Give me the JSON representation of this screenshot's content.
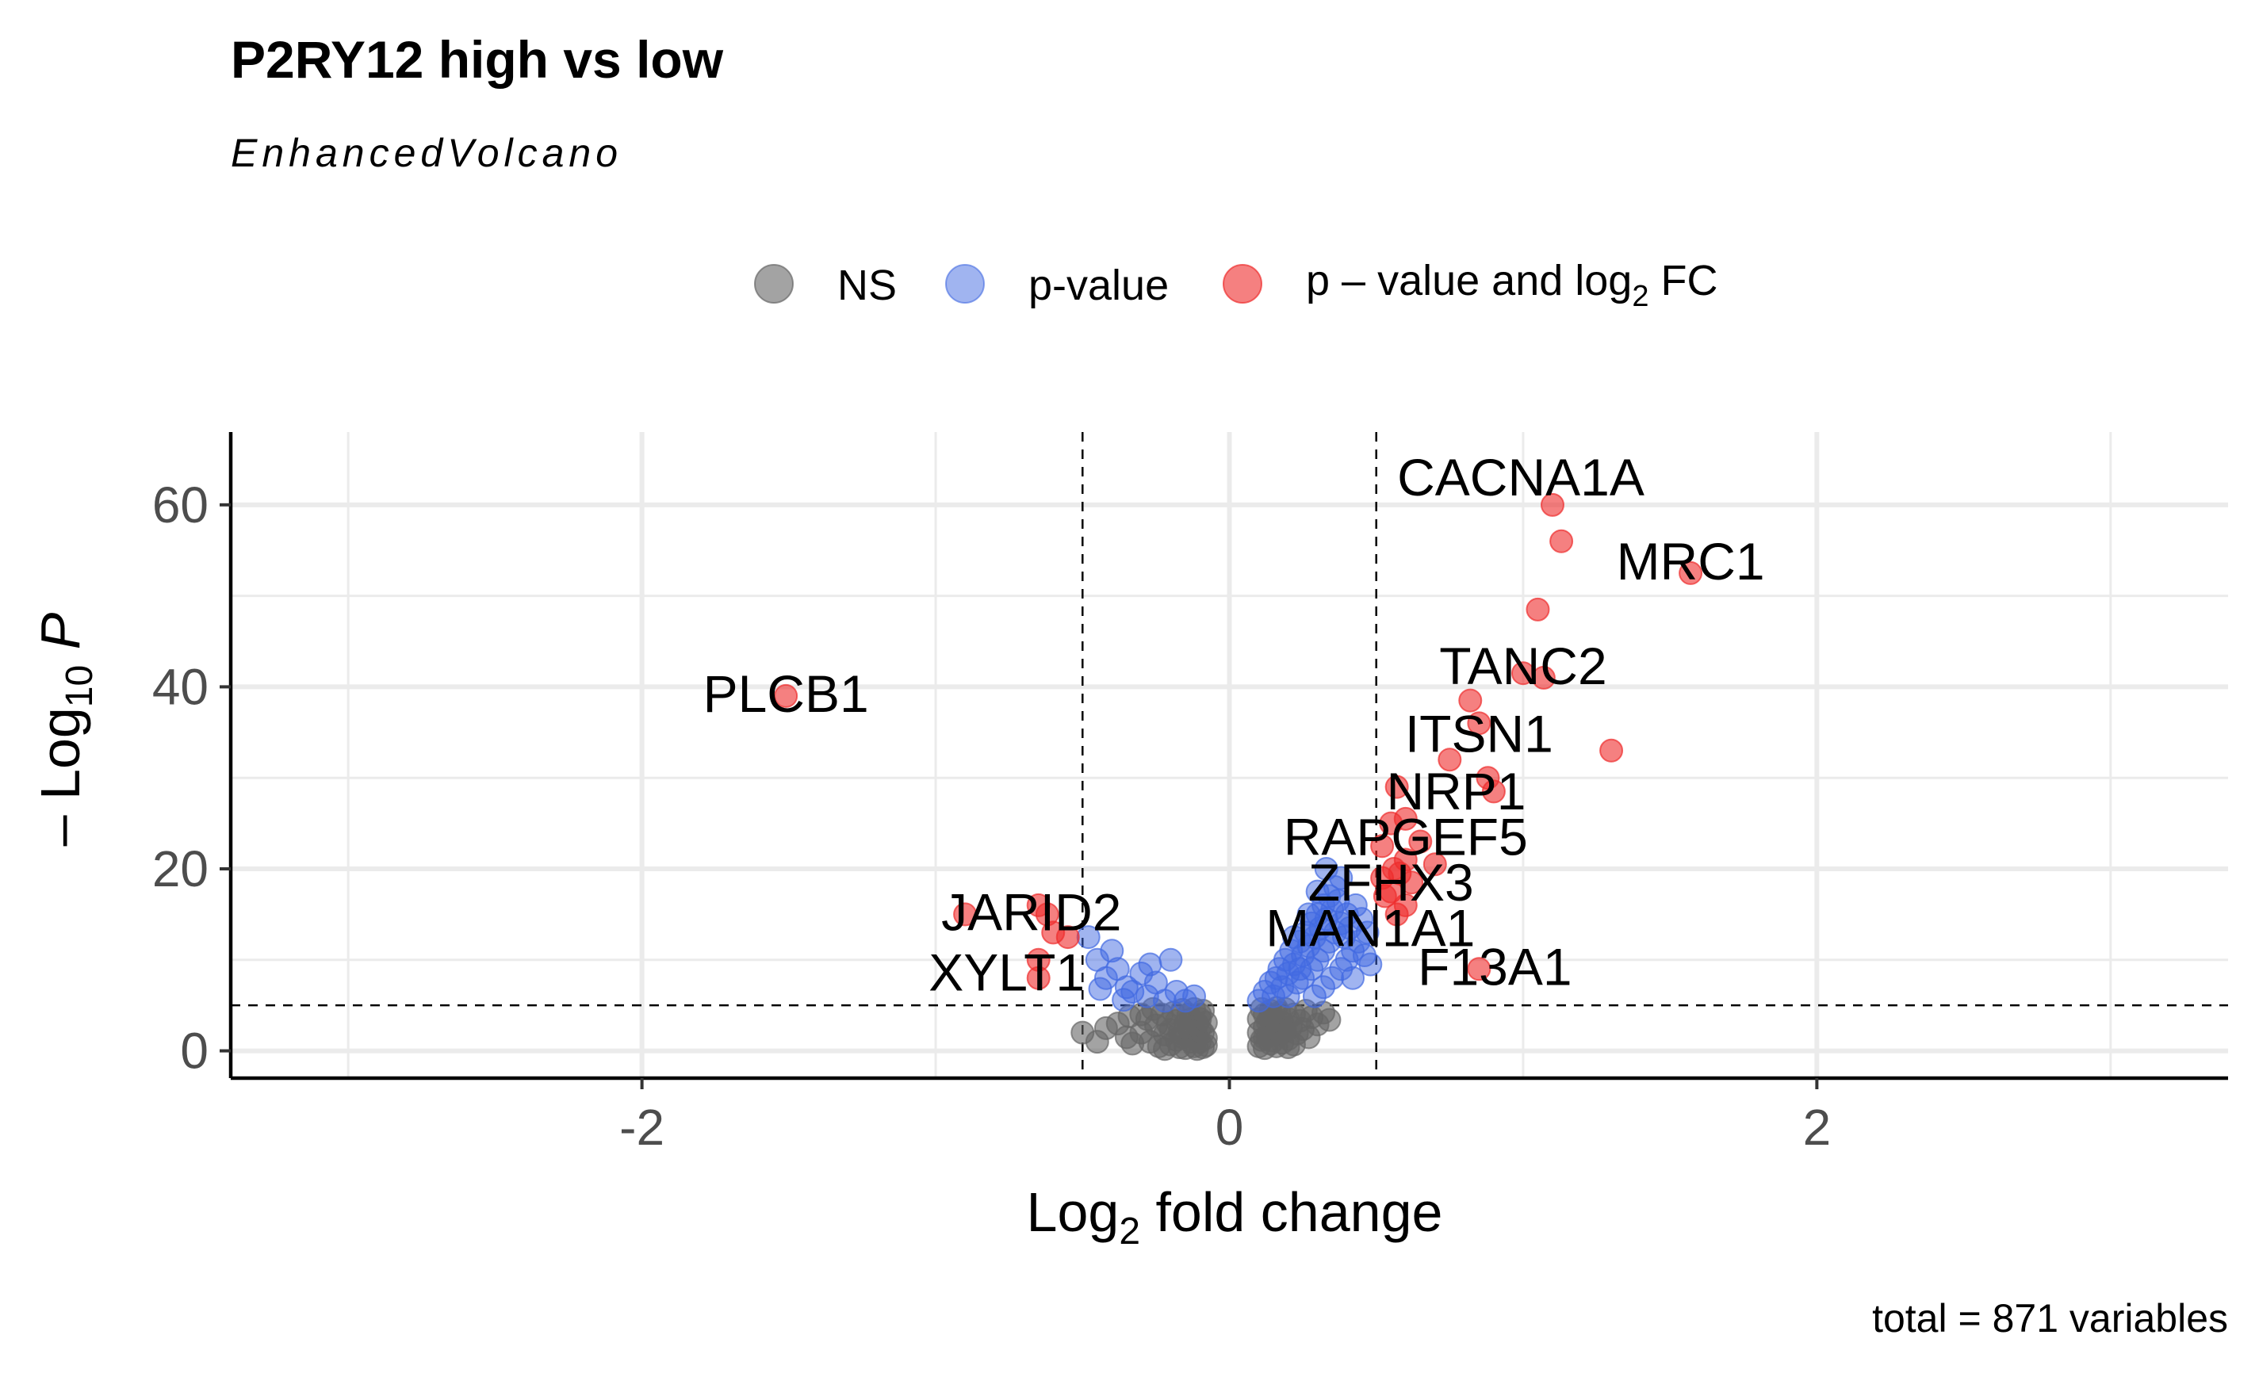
{
  "title": "P2RY12 high vs low",
  "subtitle": "EnhancedVolcano",
  "caption": "total = 871 variables",
  "legend": {
    "items": [
      {
        "label": "NS",
        "color": "#666666"
      },
      {
        "label": "p-value",
        "color": "#4169e1"
      },
      {
        "label": "p – value and log",
        "sub": "2",
        "suffix": " FC",
        "color": "#ee2c2c"
      }
    ]
  },
  "colors": {
    "ns": "#666666",
    "p": "#4169e1",
    "both": "#ee2c2c",
    "grid": "#ebebeb"
  },
  "chart_data": {
    "type": "scatter",
    "title": "P2RY12 high vs low",
    "subtitle": "EnhancedVolcano",
    "xlabel": {
      "main": "Log",
      "sub": "2",
      "rest": " fold change"
    },
    "ylabel": {
      "prefix": "– Log",
      "sub": "10",
      "italic": " P"
    },
    "xlim": [
      -3.4,
      3.4
    ],
    "ylim": [
      -3,
      68
    ],
    "xticks": [
      -2,
      0,
      2
    ],
    "xtick_labels": [
      "-2",
      "0",
      "2"
    ],
    "yticks": [
      0,
      20,
      40,
      60
    ],
    "ytick_labels": [
      "0",
      "20",
      "40",
      "60"
    ],
    "grid": true,
    "legend_position": "top",
    "thresholds": {
      "fc_cutoff": 0.5,
      "p_cutoff_log10": 5
    },
    "labelled_points": [
      {
        "gene": "CACNA1A",
        "x": 1.1,
        "y": 60
      },
      {
        "gene": "MRC1",
        "x": 1.57,
        "y": 52.5
      },
      {
        "gene": "TANC2",
        "x": 1.0,
        "y": 41
      },
      {
        "gene": "PLCB1",
        "x": -1.51,
        "y": 39
      },
      {
        "gene": "ITSN1",
        "x": 0.85,
        "y": 36
      },
      {
        "gene": "NRP1",
        "x": 0.88,
        "y": 30
      },
      {
        "gene": "RAPGEF5",
        "x": 0.6,
        "y": 25
      },
      {
        "gene": "ZFHX3",
        "x": 0.55,
        "y": 20
      },
      {
        "gene": "MAN1A1",
        "x": 0.48,
        "y": 15
      },
      {
        "gene": "JARID2",
        "x": -0.62,
        "y": 15
      },
      {
        "gene": "XYLT1",
        "x": -0.65,
        "y": 8
      },
      {
        "gene": "F13A1",
        "x": 0.85,
        "y": 9
      }
    ],
    "series": [
      {
        "name": "NS",
        "color": "#666666",
        "points": [
          [
            -0.5,
            2
          ],
          [
            -0.45,
            1
          ],
          [
            -0.42,
            2.5
          ],
          [
            -0.38,
            3
          ],
          [
            -0.35,
            1.5
          ],
          [
            -0.33,
            0.8
          ],
          [
            -0.3,
            2
          ],
          [
            -0.28,
            3.5
          ],
          [
            -0.27,
            1
          ],
          [
            -0.25,
            2.8
          ],
          [
            -0.24,
            0.5
          ],
          [
            -0.23,
            4
          ],
          [
            -0.22,
            1.8
          ],
          [
            -0.21,
            3
          ],
          [
            -0.2,
            0.7
          ],
          [
            -0.2,
            2.3
          ],
          [
            -0.19,
            4.2
          ],
          [
            -0.18,
            1.2
          ],
          [
            -0.18,
            3.3
          ],
          [
            -0.17,
            0.4
          ],
          [
            -0.17,
            2
          ],
          [
            -0.16,
            4.5
          ],
          [
            -0.16,
            1.5
          ],
          [
            -0.15,
            3
          ],
          [
            -0.15,
            0.3
          ],
          [
            -0.14,
            2.5
          ],
          [
            -0.14,
            4
          ],
          [
            -0.13,
            1
          ],
          [
            -0.13,
            3.5
          ],
          [
            -0.12,
            0.5
          ],
          [
            -0.12,
            2
          ],
          [
            -0.12,
            4.6
          ],
          [
            -0.11,
            1.5
          ],
          [
            -0.11,
            3
          ],
          [
            -0.11,
            0.2
          ],
          [
            -0.1,
            2.5
          ],
          [
            -0.1,
            4
          ],
          [
            -0.1,
            1
          ],
          [
            -0.1,
            3.5
          ],
          [
            -0.09,
            0.4
          ],
          [
            -0.09,
            2
          ],
          [
            -0.09,
            4.4
          ],
          [
            -0.08,
            1.4
          ],
          [
            -0.08,
            3.1
          ],
          [
            -0.08,
            0.6
          ],
          [
            -0.26,
            4.6
          ],
          [
            -0.3,
            4
          ],
          [
            -0.34,
            3.8
          ],
          [
            -0.22,
            0.2
          ],
          [
            0.1,
            0.5
          ],
          [
            0.1,
            2
          ],
          [
            0.1,
            3.5
          ],
          [
            0.11,
            1.2
          ],
          [
            0.11,
            4.6
          ],
          [
            0.12,
            0.3
          ],
          [
            0.12,
            2.6
          ],
          [
            0.12,
            4
          ],
          [
            0.13,
            1.6
          ],
          [
            0.13,
            3.2
          ],
          [
            0.14,
            0.8
          ],
          [
            0.14,
            2.2
          ],
          [
            0.14,
            4.4
          ],
          [
            0.15,
            1.1
          ],
          [
            0.15,
            3.6
          ],
          [
            0.16,
            0.5
          ],
          [
            0.16,
            2.8
          ],
          [
            0.17,
            1.8
          ],
          [
            0.17,
            4.2
          ],
          [
            0.18,
            0.9
          ],
          [
            0.18,
            3.1
          ],
          [
            0.19,
            2.2
          ],
          [
            0.19,
            4.6
          ],
          [
            0.2,
            1.3
          ],
          [
            0.2,
            3.5
          ],
          [
            0.21,
            2.6
          ],
          [
            0.22,
            0.7
          ],
          [
            0.22,
            4
          ],
          [
            0.23,
            1.9
          ],
          [
            0.24,
            3.3
          ],
          [
            0.25,
            2.4
          ],
          [
            0.26,
            4.4
          ],
          [
            0.27,
            1.5
          ],
          [
            0.28,
            3.7
          ],
          [
            0.3,
            2.9
          ],
          [
            0.32,
            4.2
          ],
          [
            0.34,
            3.4
          ],
          [
            0.12,
            1.4
          ],
          [
            0.14,
            3.9
          ],
          [
            0.18,
            2
          ],
          [
            0.2,
            0.4
          ],
          [
            0.16,
            4.7
          ]
        ]
      },
      {
        "name": "p-value",
        "color": "#4169e1",
        "points": [
          [
            -0.48,
            12.5
          ],
          [
            -0.45,
            10
          ],
          [
            -0.42,
            8
          ],
          [
            -0.4,
            11
          ],
          [
            -0.38,
            9
          ],
          [
            -0.35,
            7
          ],
          [
            -0.33,
            6.5
          ],
          [
            -0.3,
            8.5
          ],
          [
            -0.28,
            6
          ],
          [
            -0.25,
            7.5
          ],
          [
            -0.22,
            5.5
          ],
          [
            -0.2,
            10
          ],
          [
            -0.18,
            6.5
          ],
          [
            -0.15,
            5.5
          ],
          [
            -0.12,
            6
          ],
          [
            -0.27,
            9.5
          ],
          [
            -0.36,
            5.6
          ],
          [
            -0.44,
            6.8
          ],
          [
            0.1,
            5.5
          ],
          [
            0.12,
            6.5
          ],
          [
            0.14,
            7.5
          ],
          [
            0.15,
            6
          ],
          [
            0.16,
            8
          ],
          [
            0.17,
            9
          ],
          [
            0.18,
            7
          ],
          [
            0.19,
            10
          ],
          [
            0.2,
            8.5
          ],
          [
            0.2,
            6
          ],
          [
            0.21,
            11
          ],
          [
            0.22,
            9.5
          ],
          [
            0.23,
            7.5
          ],
          [
            0.24,
            12
          ],
          [
            0.25,
            10.5
          ],
          [
            0.25,
            8
          ],
          [
            0.26,
            13
          ],
          [
            0.27,
            11.5
          ],
          [
            0.28,
            9
          ],
          [
            0.28,
            14
          ],
          [
            0.29,
            12.5
          ],
          [
            0.3,
            10
          ],
          [
            0.3,
            15
          ],
          [
            0.31,
            13.5
          ],
          [
            0.32,
            11
          ],
          [
            0.32,
            16
          ],
          [
            0.33,
            14.5
          ],
          [
            0.34,
            12
          ],
          [
            0.34,
            17
          ],
          [
            0.35,
            15.5
          ],
          [
            0.36,
            13
          ],
          [
            0.36,
            18
          ],
          [
            0.37,
            16.5
          ],
          [
            0.38,
            14
          ],
          [
            0.38,
            19
          ],
          [
            0.39,
            12.5
          ],
          [
            0.4,
            15
          ],
          [
            0.4,
            10
          ],
          [
            0.41,
            13.5
          ],
          [
            0.42,
            11
          ],
          [
            0.43,
            16
          ],
          [
            0.44,
            12
          ],
          [
            0.45,
            14.5
          ],
          [
            0.46,
            10.5
          ],
          [
            0.47,
            13
          ],
          [
            0.48,
            9.5
          ],
          [
            0.35,
            8
          ],
          [
            0.32,
            7
          ],
          [
            0.38,
            9
          ],
          [
            0.42,
            8
          ],
          [
            0.29,
            6
          ],
          [
            0.33,
            20
          ],
          [
            0.3,
            17.5
          ],
          [
            0.27,
            15
          ],
          [
            0.24,
            9
          ],
          [
            0.22,
            12.5
          ]
        ]
      },
      {
        "name": "p – value and log2 FC",
        "color": "#ee2c2c",
        "points": [
          [
            -1.51,
            39
          ],
          [
            -0.9,
            15
          ],
          [
            -0.65,
            16
          ],
          [
            -0.62,
            15
          ],
          [
            -0.6,
            13
          ],
          [
            -0.55,
            12.5
          ],
          [
            -0.65,
            10
          ],
          [
            -0.65,
            8
          ],
          [
            1.1,
            60
          ],
          [
            1.13,
            56
          ],
          [
            1.57,
            52.5
          ],
          [
            1.05,
            48.5
          ],
          [
            1.0,
            41.5
          ],
          [
            1.07,
            41
          ],
          [
            1.3,
            33
          ],
          [
            0.82,
            38.5
          ],
          [
            0.85,
            36
          ],
          [
            0.75,
            32
          ],
          [
            0.88,
            30
          ],
          [
            0.9,
            28.5
          ],
          [
            0.57,
            29
          ],
          [
            0.6,
            25.5
          ],
          [
            0.55,
            25
          ],
          [
            0.65,
            23
          ],
          [
            0.52,
            22.5
          ],
          [
            0.6,
            21
          ],
          [
            0.56,
            20
          ],
          [
            0.58,
            19.5
          ],
          [
            0.62,
            18.5
          ],
          [
            0.55,
            17.5
          ],
          [
            0.53,
            17
          ],
          [
            0.6,
            16
          ],
          [
            0.57,
            15
          ],
          [
            0.85,
            9
          ],
          [
            0.7,
            20.5
          ],
          [
            0.52,
            19
          ]
        ]
      }
    ]
  }
}
